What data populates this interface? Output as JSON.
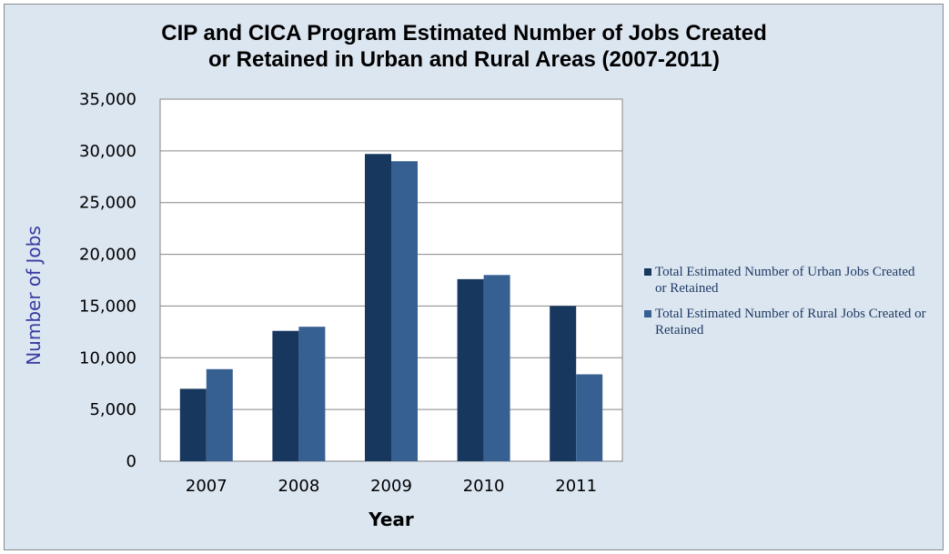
{
  "chart_data": {
    "type": "bar",
    "title_lines": [
      "CIP and CICA Program Estimated Number of Jobs Created",
      "or Retained in Urban and Rural Areas (2007-2011)"
    ],
    "xlabel": "Year",
    "ylabel": "Number of Jobs",
    "categories": [
      "2007",
      "2008",
      "2009",
      "2010",
      "2011"
    ],
    "series": [
      {
        "name": "Total Estimated Number of Urban Jobs Created or Retained",
        "color": "#17375e",
        "values": [
          7000,
          12600,
          29700,
          17600,
          15000
        ]
      },
      {
        "name": "Total Estimated Number of Rural Jobs Created or Retained",
        "color": "#376092",
        "values": [
          8900,
          13000,
          29000,
          18000,
          8400
        ]
      }
    ],
    "ylim": [
      0,
      35000
    ],
    "yticks": [
      "0",
      "5,000",
      "10,000",
      "15,000",
      "20,000",
      "25,000",
      "30,000",
      "35,000"
    ],
    "grid": true,
    "legend_position": "right"
  },
  "colors": {
    "outer_background": "#dce6f1",
    "plot_background": "#ffffff",
    "gridline": "#868686",
    "ylabel_color": "#3a3aa0"
  }
}
